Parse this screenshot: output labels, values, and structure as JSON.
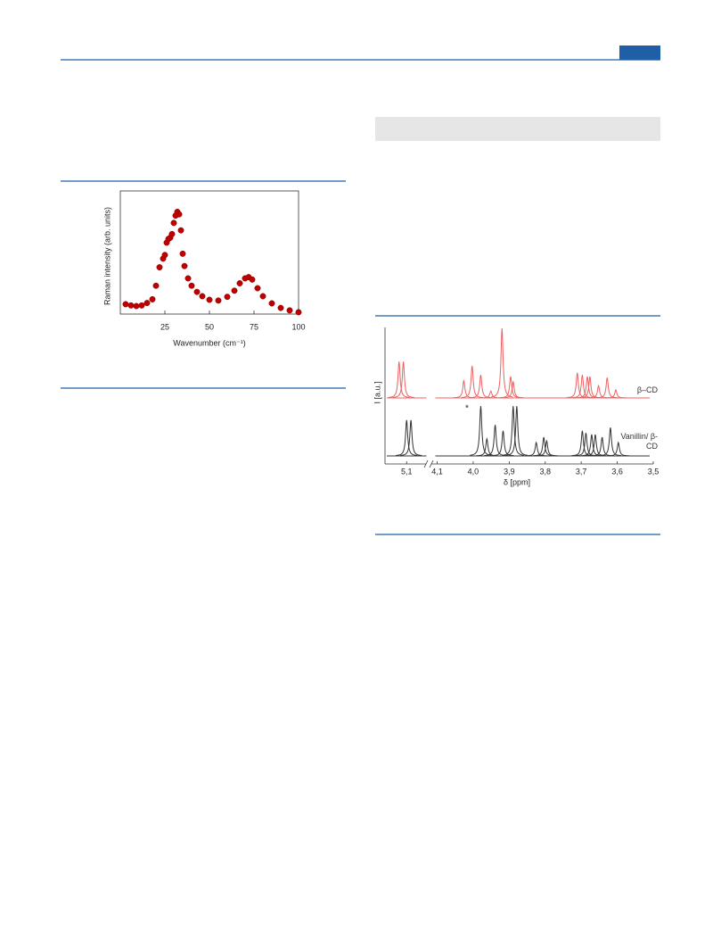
{
  "chart_data": [
    {
      "type": "scatter",
      "xlabel": "Wavenumber (cm⁻¹)",
      "ylabel": "Raman intensity (arb. units)",
      "color": "#c00000",
      "xlim": [
        0,
        100
      ],
      "ylim": [
        0,
        1
      ],
      "xticks": [
        25,
        50,
        75,
        100
      ],
      "x": [
        3,
        6,
        9,
        12,
        15,
        18,
        20,
        22,
        24,
        25,
        26,
        27,
        28,
        29,
        30,
        31,
        32,
        33,
        34,
        35,
        36,
        38,
        40,
        43,
        46,
        50,
        55,
        60,
        64,
        67,
        70,
        72,
        74,
        77,
        80,
        85,
        90,
        95,
        100
      ],
      "values": [
        0.08,
        0.07,
        0.065,
        0.07,
        0.09,
        0.12,
        0.23,
        0.38,
        0.45,
        0.48,
        0.58,
        0.61,
        0.62,
        0.65,
        0.74,
        0.8,
        0.83,
        0.81,
        0.68,
        0.49,
        0.39,
        0.29,
        0.23,
        0.18,
        0.145,
        0.116,
        0.11,
        0.14,
        0.19,
        0.25,
        0.29,
        0.3,
        0.28,
        0.21,
        0.145,
        0.087,
        0.05,
        0.03,
        0.015
      ]
    },
    {
      "type": "line",
      "xlabel": "δ [ppm]",
      "ylabel": "I [a.u.]",
      "annotation": "*",
      "xlim": [
        5.16,
        3.5
      ],
      "xbreak": [
        5.04,
        4.11
      ],
      "xticks": [
        {
          "value": 5.1,
          "label": "5,1"
        },
        {
          "value": 4.1,
          "label": "4,1"
        },
        {
          "value": 4.0,
          "label": "4,0"
        },
        {
          "value": 3.9,
          "label": "3,9"
        },
        {
          "value": 3.8,
          "label": "3,8"
        },
        {
          "value": 3.7,
          "label": "3,7"
        },
        {
          "value": 3.6,
          "label": "3,6"
        },
        {
          "value": 3.5,
          "label": "3,5"
        }
      ],
      "series": [
        {
          "name": "β–CD",
          "color": "#f06060",
          "x": [
            5.121,
            5.109,
            4.026,
            4.003,
            3.979,
            3.951,
            3.92,
            3.896,
            3.889,
            3.711,
            3.697,
            3.683,
            3.676,
            3.652,
            3.628,
            3.604
          ],
          "values": [
            0.68,
            0.68,
            0.32,
            0.6,
            0.43,
            0.13,
            1.3,
            0.4,
            0.3,
            0.47,
            0.43,
            0.4,
            0.4,
            0.23,
            0.38,
            0.15
          ]
        },
        {
          "name": "Vanillin/ β-CD",
          "color": "#333333",
          "x": [
            5.1,
            5.088,
            3.979,
            3.962,
            3.939,
            3.917,
            3.889,
            3.879,
            3.825,
            3.804,
            3.796,
            3.697,
            3.687,
            3.671,
            3.661,
            3.642,
            3.619,
            3.597
          ],
          "values": [
            0.67,
            0.67,
            0.93,
            0.32,
            0.58,
            0.47,
            0.93,
            0.93,
            0.25,
            0.35,
            0.28,
            0.47,
            0.43,
            0.4,
            0.4,
            0.35,
            0.53,
            0.25
          ]
        }
      ]
    }
  ]
}
